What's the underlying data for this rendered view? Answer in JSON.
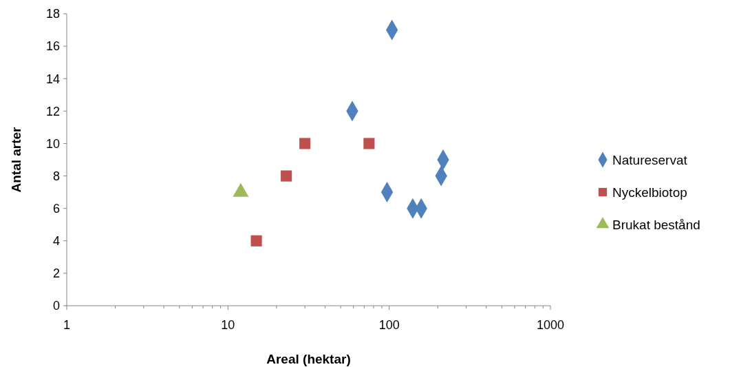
{
  "chart_data": {
    "type": "scatter",
    "xlabel": "Areal (hektar)",
    "ylabel": "Antal arter",
    "log": "x",
    "xlim": [
      1,
      1000
    ],
    "ylim": [
      0,
      18
    ],
    "xticks": [
      1,
      {
        "value": 2,
        "label": null
      },
      {
        "value": 3,
        "label": null
      },
      {
        "value": 4,
        "label": null
      },
      {
        "value": 5,
        "label": null
      },
      {
        "value": 6,
        "label": null
      },
      {
        "value": 7,
        "label": null
      },
      {
        "value": 8,
        "label": null
      },
      {
        "value": 9,
        "label": null
      },
      10,
      {
        "value": 20,
        "label": null
      },
      {
        "value": 30,
        "label": null
      },
      {
        "value": 40,
        "label": null
      },
      {
        "value": 50,
        "label": null
      },
      {
        "value": 60,
        "label": null
      },
      {
        "value": 70,
        "label": null
      },
      {
        "value": 80,
        "label": null
      },
      {
        "value": 90,
        "label": null
      },
      100,
      {
        "value": 200,
        "label": null
      },
      {
        "value": 300,
        "label": null
      },
      {
        "value": 400,
        "label": null
      },
      {
        "value": 500,
        "label": null
      },
      {
        "value": 600,
        "label": null
      },
      {
        "value": 700,
        "label": null
      },
      {
        "value": 800,
        "label": null
      },
      {
        "value": 900,
        "label": null
      },
      1000
    ],
    "yticks": [
      0,
      2,
      4,
      6,
      8,
      10,
      12,
      14,
      16,
      18
    ],
    "grid": false,
    "legend": "right",
    "series": [
      {
        "name": "Natureservat",
        "color": "#4f81bd",
        "marker": "diamond",
        "x": [
          104,
          59,
          97,
          140,
          158,
          210,
          216
        ],
        "values": [
          17,
          12,
          7,
          6,
          6,
          8,
          9
        ]
      },
      {
        "name": "Nyckelbiotop",
        "color": "#c0504d",
        "marker": "square",
        "x": [
          15,
          23,
          30,
          75
        ],
        "values": [
          4,
          8,
          10,
          10
        ]
      },
      {
        "name": "Brukat bestånd",
        "color": "#9bbb59",
        "marker": "triangle",
        "x": [
          12
        ],
        "values": [
          7
        ]
      }
    ]
  }
}
